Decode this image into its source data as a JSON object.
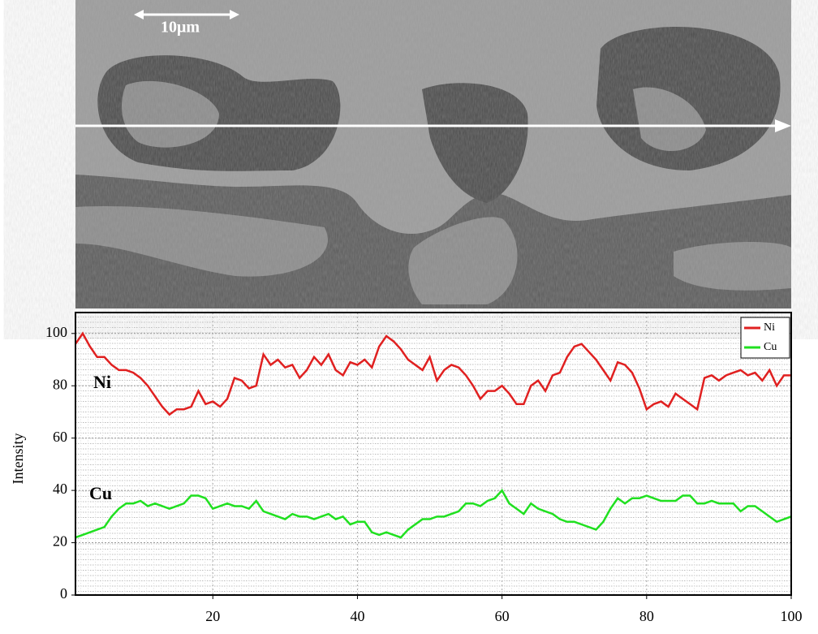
{
  "image_caption": {
    "scale_bar": "10μm"
  },
  "chart_data": {
    "type": "line",
    "y_label": "Intensity",
    "annotations": [
      "Ni",
      "Cu"
    ],
    "x": [
      1,
      2,
      3,
      4,
      5,
      6,
      7,
      8,
      9,
      10,
      11,
      12,
      13,
      14,
      15,
      16,
      17,
      18,
      19,
      20,
      21,
      22,
      23,
      24,
      25,
      26,
      27,
      28,
      29,
      30,
      31,
      32,
      33,
      34,
      35,
      36,
      37,
      38,
      39,
      40,
      41,
      42,
      43,
      44,
      45,
      46,
      47,
      48,
      49,
      50,
      51,
      52,
      53,
      54,
      55,
      56,
      57,
      58,
      59,
      60,
      61,
      62,
      63,
      64,
      65,
      66,
      67,
      68,
      69,
      70,
      71,
      72,
      73,
      74,
      75,
      76,
      77,
      78,
      79,
      80,
      81,
      82,
      83,
      84,
      85,
      86,
      87,
      88,
      89,
      90,
      91,
      92,
      93,
      94,
      95,
      96,
      97,
      98,
      99,
      100
    ],
    "series": [
      {
        "name": "Ni",
        "color": "#e02020",
        "values": [
          96,
          100,
          95,
          91,
          91,
          88,
          86,
          86,
          85,
          83,
          80,
          76,
          72,
          69,
          71,
          71,
          72,
          78,
          73,
          74,
          72,
          75,
          83,
          82,
          79,
          80,
          92,
          88,
          90,
          87,
          88,
          83,
          86,
          91,
          88,
          92,
          86,
          84,
          89,
          88,
          90,
          87,
          95,
          99,
          97,
          94,
          90,
          88,
          86,
          91,
          82,
          86,
          88,
          87,
          84,
          80,
          75,
          78,
          78,
          80,
          77,
          73,
          73,
          80,
          82,
          78,
          84,
          85,
          91,
          95,
          96,
          93,
          90,
          86,
          82,
          89,
          88,
          85,
          79,
          71,
          73,
          74,
          72,
          77,
          75,
          73,
          71,
          83,
          84,
          82,
          84,
          85,
          86,
          84,
          85,
          82,
          86,
          80,
          84,
          84
        ]
      },
      {
        "name": "Cu",
        "color": "#20e020",
        "values": [
          22,
          23,
          24,
          25,
          26,
          30,
          33,
          35,
          35,
          36,
          34,
          35,
          34,
          33,
          34,
          35,
          38,
          38,
          37,
          33,
          34,
          35,
          34,
          34,
          33,
          36,
          32,
          31,
          30,
          29,
          31,
          30,
          30,
          29,
          30,
          31,
          29,
          30,
          27,
          28,
          28,
          24,
          23,
          24,
          23,
          22,
          25,
          27,
          29,
          29,
          30,
          30,
          31,
          32,
          35,
          35,
          34,
          36,
          37,
          40,
          35,
          33,
          31,
          35,
          33,
          32,
          31,
          29,
          28,
          28,
          27,
          26,
          25,
          28,
          33,
          37,
          35,
          37,
          37,
          38,
          37,
          36,
          36,
          36,
          38,
          38,
          35,
          35,
          36,
          35,
          35,
          35,
          32,
          34,
          34,
          32,
          30,
          28,
          29,
          30
        ]
      }
    ],
    "xlim": [
      1,
      100
    ],
    "ylim": [
      0,
      108
    ],
    "xticks": [
      20,
      40,
      60,
      80,
      100
    ],
    "yticks": [
      0,
      20,
      40,
      60,
      80,
      100
    ],
    "grid": true,
    "legend": "top-right"
  }
}
